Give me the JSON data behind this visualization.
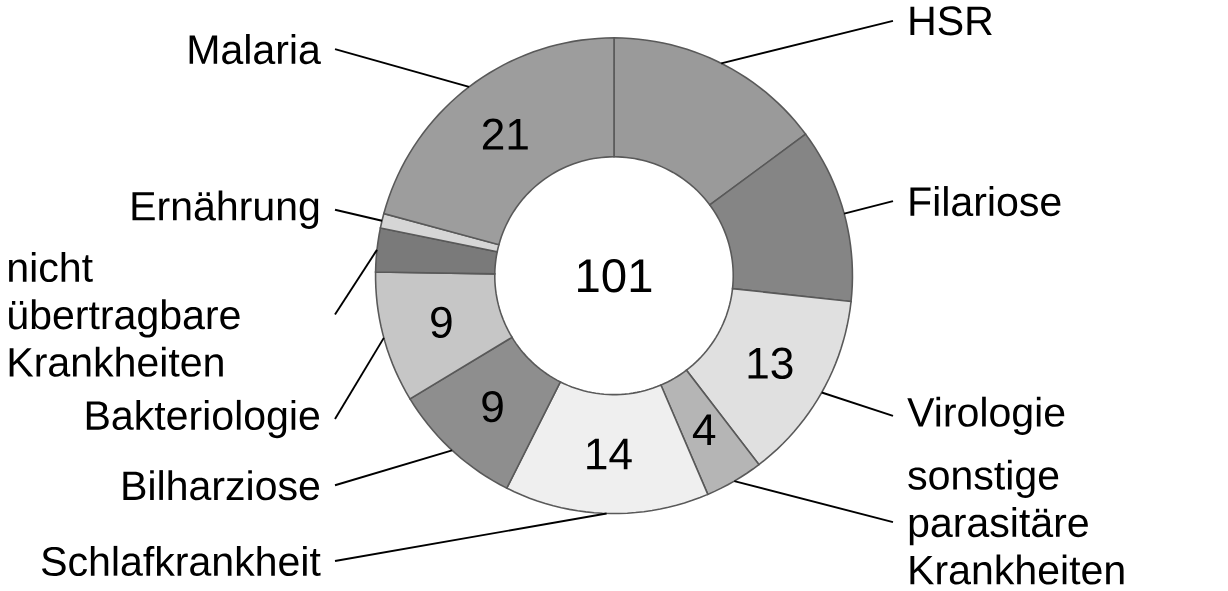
{
  "chart_data": {
    "type": "donut",
    "categories": [
      "HSR",
      "Filariose",
      "Virologie",
      "sonstige parasitäre Krankheiten",
      "Schlafkrankheit",
      "Bilharziose",
      "Bakteriologie",
      "nicht übertragbare Krankheiten",
      "Ernährung",
      "Malaria"
    ],
    "values": [
      15,
      12,
      13,
      4,
      14,
      9,
      9,
      3,
      1,
      21
    ],
    "colors": [
      "#9a9a9a",
      "#858585",
      "#e0e0e0",
      "#b5b5b5",
      "#efefef",
      "#8e8e8e",
      "#c6c6c6",
      "#7a7a7a",
      "#d6d6d6",
      "#9d9d9d"
    ],
    "value_labels": [
      null,
      null,
      "13",
      "4",
      "14",
      "9",
      "9",
      null,
      null,
      "21"
    ],
    "annotations": [
      "101"
    ]
  }
}
